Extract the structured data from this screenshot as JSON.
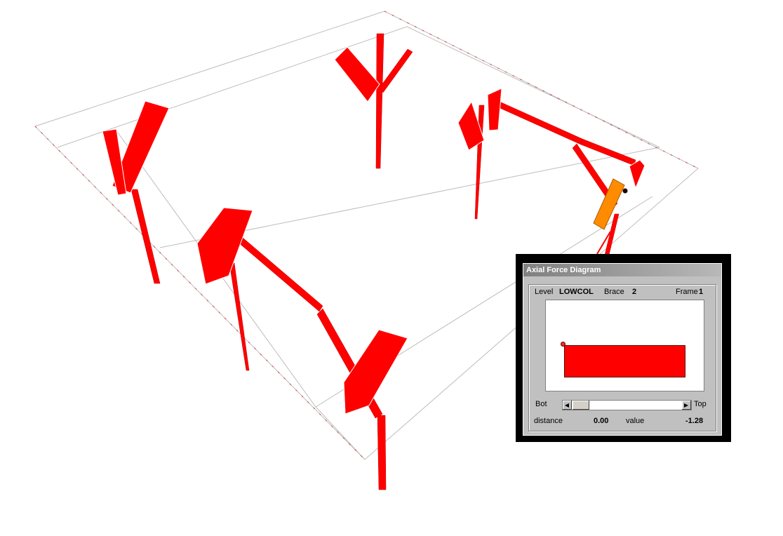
{
  "dialog": {
    "title": "Axial Force Diagram",
    "level_label": "Level",
    "level_value": "LOWCOL",
    "brace_label": "Brace",
    "brace_value": "2",
    "frame_label": "Frame",
    "frame_value": "1",
    "bot_label": "Bot",
    "top_label": "Top",
    "distance_label": "distance",
    "distance_value": "0.00",
    "value_label": "value",
    "value_value": "-1.28",
    "slider_position": 0.0
  },
  "colors": {
    "force_fill": "#ff0000",
    "selected_member": "#ff8c00",
    "grid_lines": "#bdbdbd",
    "dialog_face": "#c0c0c0"
  }
}
